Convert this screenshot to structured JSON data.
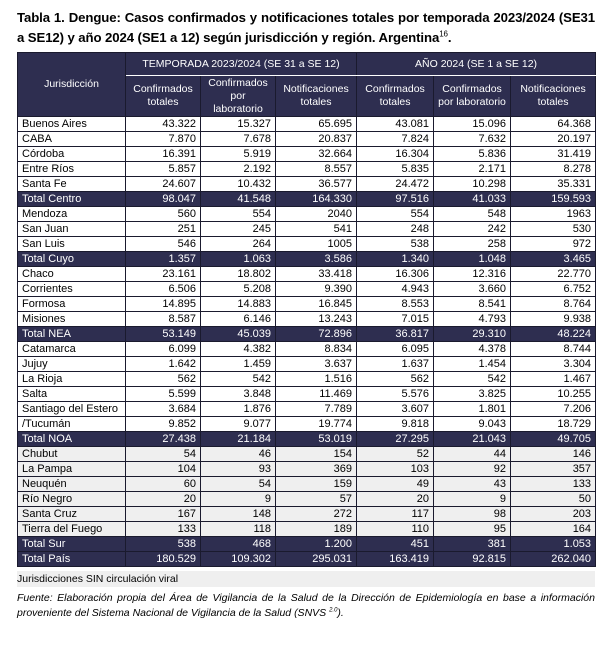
{
  "title": "Tabla 1. Dengue: Casos confirmados y notificaciones totales por temporada 2023/2024 (SE31 a SE12) y año 2024 (SE1 a 12) según jurisdicción y región. Argentina",
  "title_sup": "16",
  "title_end": ".",
  "header": {
    "jurisdiccion": "Jurisdicción",
    "group1": "TEMPORADA 2023/2024 (SE 31 a SE 12)",
    "group2": "AÑO 2024 (SE 1 a SE 12)",
    "cols": [
      "Confirmados totales",
      "Confirmados por laboratorio",
      "Notificaciones totales",
      "Confirmados totales",
      "Confirmados por laboratorio",
      "Notificaciones totales"
    ]
  },
  "rows": [
    {
      "name": "Buenos Aires",
      "v": [
        "43.322",
        "15.327",
        "65.695",
        "43.081",
        "15.096",
        "64.368"
      ],
      "type": "row"
    },
    {
      "name": "CABA",
      "v": [
        "7.870",
        "7.678",
        "20.837",
        "7.824",
        "7.632",
        "20.197"
      ],
      "type": "row"
    },
    {
      "name": "Córdoba",
      "v": [
        "16.391",
        "5.919",
        "32.664",
        "16.304",
        "5.836",
        "31.419"
      ],
      "type": "row"
    },
    {
      "name": "Entre Ríos",
      "v": [
        "5.857",
        "2.192",
        "8.557",
        "5.835",
        "2.171",
        "8.278"
      ],
      "type": "row"
    },
    {
      "name": "Santa Fe",
      "v": [
        "24.607",
        "10.432",
        "36.577",
        "24.472",
        "10.298",
        "35.331"
      ],
      "type": "row"
    },
    {
      "name": "Total Centro",
      "v": [
        "98.047",
        "41.548",
        "164.330",
        "97.516",
        "41.033",
        "159.593"
      ],
      "type": "total"
    },
    {
      "name": "Mendoza",
      "v": [
        "560",
        "554",
        "2040",
        "554",
        "548",
        "1963"
      ],
      "type": "row"
    },
    {
      "name": "San Juan",
      "v": [
        "251",
        "245",
        "541",
        "248",
        "242",
        "530"
      ],
      "type": "row"
    },
    {
      "name": "San Luis",
      "v": [
        "546",
        "264",
        "1005",
        "538",
        "258",
        "972"
      ],
      "type": "row"
    },
    {
      "name": "Total Cuyo",
      "v": [
        "1.357",
        "1.063",
        "3.586",
        "1.340",
        "1.048",
        "3.465"
      ],
      "type": "total"
    },
    {
      "name": "Chaco",
      "v": [
        "23.161",
        "18.802",
        "33.418",
        "16.306",
        "12.316",
        "22.770"
      ],
      "type": "row"
    },
    {
      "name": "Corrientes",
      "v": [
        "6.506",
        "5.208",
        "9.390",
        "4.943",
        "3.660",
        "6.752"
      ],
      "type": "row"
    },
    {
      "name": "Formosa",
      "v": [
        "14.895",
        "14.883",
        "16.845",
        "8.553",
        "8.541",
        "8.764"
      ],
      "type": "row"
    },
    {
      "name": "Misiones",
      "v": [
        "8.587",
        "6.146",
        "13.243",
        "7.015",
        "4.793",
        "9.938"
      ],
      "type": "row"
    },
    {
      "name": "Total NEA",
      "v": [
        "53.149",
        "45.039",
        "72.896",
        "36.817",
        "29.310",
        "48.224"
      ],
      "type": "total"
    },
    {
      "name": "Catamarca",
      "v": [
        "6.099",
        "4.382",
        "8.834",
        "6.095",
        "4.378",
        "8.744"
      ],
      "type": "row"
    },
    {
      "name": "Jujuy",
      "v": [
        "1.642",
        "1.459",
        "3.637",
        "1.637",
        "1.454",
        "3.304"
      ],
      "type": "row"
    },
    {
      "name": "La Rioja",
      "v": [
        "562",
        "542",
        "1.516",
        "562",
        "542",
        "1.467"
      ],
      "type": "row"
    },
    {
      "name": "Salta",
      "v": [
        "5.599",
        "3.848",
        "11.469",
        "5.576",
        "3.825",
        "10.255"
      ],
      "type": "row"
    },
    {
      "name": "Santiago del Estero",
      "v": [
        "3.684",
        "1.876",
        "7.789",
        "3.607",
        "1.801",
        "7.206"
      ],
      "type": "row"
    },
    {
      "name": "/Tucumán",
      "v": [
        "9.852",
        "9.077",
        "19.774",
        "9.818",
        "9.043",
        "18.729"
      ],
      "type": "row"
    },
    {
      "name": "Total NOA",
      "v": [
        "27.438",
        "21.184",
        "53.019",
        "27.295",
        "21.043",
        "49.705"
      ],
      "type": "total"
    },
    {
      "name": "Chubut",
      "v": [
        "54",
        "46",
        "154",
        "52",
        "44",
        "146"
      ],
      "type": "sin"
    },
    {
      "name": "La Pampa",
      "v": [
        "104",
        "93",
        "369",
        "103",
        "92",
        "357"
      ],
      "type": "sin"
    },
    {
      "name": "Neuquén",
      "v": [
        "60",
        "54",
        "159",
        "49",
        "43",
        "133"
      ],
      "type": "sin"
    },
    {
      "name": "Río Negro",
      "v": [
        "20",
        "9",
        "57",
        "20",
        "9",
        "50"
      ],
      "type": "sin"
    },
    {
      "name": "Santa Cruz",
      "v": [
        "167",
        "148",
        "272",
        "117",
        "98",
        "203"
      ],
      "type": "sin"
    },
    {
      "name": "Tierra del Fuego",
      "v": [
        "133",
        "118",
        "189",
        "110",
        "95",
        "164"
      ],
      "type": "sin"
    },
    {
      "name": "Total Sur",
      "v": [
        "538",
        "468",
        "1.200",
        "451",
        "381",
        "1.053"
      ],
      "type": "total"
    },
    {
      "name": "Total País",
      "v": [
        "180.529",
        "109.302",
        "295.031",
        "163.419",
        "92.815",
        "262.040"
      ],
      "type": "total"
    }
  ],
  "legend": "Jurisdicciones SIN circulación viral",
  "fuente": "Fuente: Elaboración propia del Área de Vigilancia de la Salud de la Dirección de Epidemiología en base a información proveniente del Sistema Nacional de Vigilancia de la Salud (SNVS",
  "fuente_sup": "2.0",
  "fuente_end": ").",
  "colors": {
    "header_bg": "#2e2e50",
    "sin_circulacion_bg": "#efefef"
  }
}
